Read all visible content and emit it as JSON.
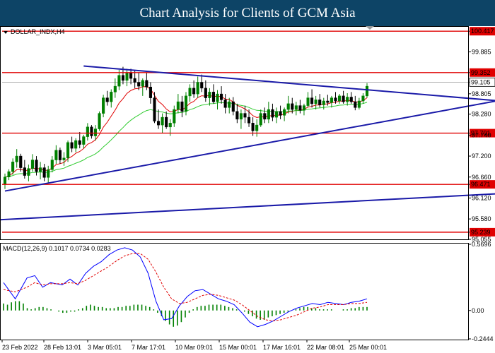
{
  "banner": {
    "title": "Chart Analysis for Clients of GCM Asia"
  },
  "colors": {
    "banner": "#0d4466",
    "bull": "#008000",
    "bear": "#000000",
    "resistance": "#e00000",
    "trendline": "#1a1aa8",
    "ema_fast": "#e00000",
    "ema_slow": "#33cc33",
    "macd_line": "#0000ff",
    "signal_line": "#e00000",
    "histogram": "#008000"
  },
  "chart_data": [
    {
      "type": "candlestick",
      "symbol_label": "DOLLAR_INDX,H4",
      "ylim": [
        95.055,
        100.53
      ],
      "y_ticks": [
        100.417,
        99.885,
        99.352,
        99.105,
        98.805,
        98.28,
        97.791,
        97.74,
        97.2,
        96.66,
        96.471,
        96.12,
        95.58,
        95.239,
        95.055
      ],
      "x_ticks": [
        "23 Feb 2022",
        "28 Feb 13:01",
        "3 Mar 05:01",
        "7 Mar 17:01",
        "10 Mar 09:01",
        "15 Mar 00:01",
        "17 Mar 16:01",
        "22 Mar 08:01",
        "25 Mar 00:01"
      ],
      "horizontal_levels": [
        100.417,
        99.352,
        97.791,
        96.471,
        95.239
      ],
      "highlight_labels": [
        100.417,
        99.352,
        97.791,
        96.471,
        95.239
      ],
      "price_label": 99.105,
      "trendlines": [
        {
          "from": [
            20,
            99.52
          ],
          "to": [
            127,
            98.61
          ]
        },
        {
          "from": [
            0,
            96.3
          ],
          "to": [
            127,
            98.66
          ]
        },
        {
          "from": [
            -3,
            95.55
          ],
          "to": [
            161,
            96.42
          ]
        }
      ],
      "candles": [
        [
          96.48,
          96.75,
          96.35,
          96.66
        ],
        [
          96.66,
          96.86,
          96.58,
          96.8
        ],
        [
          96.8,
          97.14,
          96.72,
          97.05
        ],
        [
          97.05,
          97.38,
          96.9,
          97.2
        ],
        [
          97.2,
          97.26,
          96.8,
          96.9
        ],
        [
          96.9,
          97.1,
          96.62,
          96.7
        ],
        [
          96.7,
          96.98,
          96.55,
          96.88
        ],
        [
          96.88,
          97.25,
          96.8,
          97.1
        ],
        [
          97.1,
          97.2,
          96.7,
          96.8
        ],
        [
          96.8,
          97.05,
          96.6,
          96.9
        ],
        [
          96.9,
          97.0,
          96.55,
          96.65
        ],
        [
          96.65,
          96.95,
          96.52,
          96.85
        ],
        [
          96.85,
          97.2,
          96.78,
          97.1
        ],
        [
          97.1,
          97.48,
          97.0,
          97.35
        ],
        [
          97.35,
          97.42,
          97.0,
          97.1
        ],
        [
          97.1,
          97.3,
          96.95,
          97.15
        ],
        [
          97.15,
          97.6,
          97.05,
          97.55
        ],
        [
          97.55,
          97.7,
          97.3,
          97.4
        ],
        [
          97.4,
          97.66,
          97.3,
          97.6
        ],
        [
          97.6,
          97.82,
          97.4,
          97.5
        ],
        [
          97.5,
          97.75,
          97.4,
          97.7
        ],
        [
          97.7,
          98.05,
          97.6,
          97.95
        ],
        [
          97.95,
          98.0,
          97.65,
          97.72
        ],
        [
          97.72,
          98.0,
          97.6,
          97.9
        ],
        [
          97.9,
          98.35,
          97.85,
          98.3
        ],
        [
          98.3,
          98.78,
          98.2,
          98.7
        ],
        [
          98.7,
          98.88,
          98.5,
          98.6
        ],
        [
          98.6,
          98.92,
          98.45,
          98.85
        ],
        [
          98.85,
          99.2,
          98.7,
          99.0
        ],
        [
          99.0,
          99.42,
          98.9,
          99.28
        ],
        [
          99.28,
          99.5,
          99.05,
          99.15
        ],
        [
          99.15,
          99.45,
          99.0,
          99.35
        ],
        [
          99.35,
          99.45,
          99.05,
          99.2
        ],
        [
          99.2,
          99.4,
          98.95,
          99.1
        ],
        [
          99.1,
          99.35,
          98.9,
          99.0
        ],
        [
          99.0,
          99.2,
          98.75,
          99.15
        ],
        [
          99.15,
          99.35,
          98.9,
          98.98
        ],
        [
          98.98,
          99.1,
          98.55,
          98.7
        ],
        [
          98.7,
          98.85,
          98.05,
          98.1
        ],
        [
          98.1,
          98.4,
          97.9,
          98.0
        ],
        [
          98.0,
          98.3,
          97.8,
          98.2
        ],
        [
          98.2,
          98.35,
          97.9,
          97.95
        ],
        [
          97.95,
          98.15,
          97.72,
          98.05
        ],
        [
          98.05,
          98.5,
          97.95,
          98.4
        ],
        [
          98.4,
          98.8,
          98.3,
          98.6
        ],
        [
          98.6,
          98.75,
          98.2,
          98.35
        ],
        [
          98.35,
          98.85,
          98.25,
          98.75
        ],
        [
          98.75,
          99.05,
          98.6,
          98.95
        ],
        [
          98.95,
          99.15,
          98.7,
          98.8
        ],
        [
          98.8,
          99.25,
          98.7,
          99.1
        ],
        [
          99.1,
          99.3,
          98.85,
          98.95
        ],
        [
          98.95,
          99.15,
          98.6,
          98.7
        ],
        [
          98.7,
          98.95,
          98.5,
          98.85
        ],
        [
          98.85,
          99.05,
          98.55,
          98.6
        ],
        [
          98.6,
          98.9,
          98.4,
          98.8
        ],
        [
          98.8,
          99.0,
          98.55,
          98.65
        ],
        [
          98.65,
          98.8,
          98.3,
          98.45
        ],
        [
          98.45,
          98.7,
          98.3,
          98.6
        ],
        [
          98.6,
          98.72,
          98.25,
          98.35
        ],
        [
          98.35,
          98.55,
          98.05,
          98.15
        ],
        [
          98.15,
          98.4,
          97.9,
          98.3
        ],
        [
          98.3,
          98.5,
          98.05,
          98.2
        ],
        [
          98.2,
          98.4,
          97.95,
          98.05
        ],
        [
          98.05,
          98.2,
          97.72,
          97.85
        ],
        [
          97.85,
          98.15,
          97.7,
          98.0
        ],
        [
          98.0,
          98.4,
          97.95,
          98.3
        ],
        [
          98.3,
          98.45,
          98.05,
          98.15
        ],
        [
          98.15,
          98.6,
          98.05,
          98.4
        ],
        [
          98.4,
          98.55,
          98.1,
          98.2
        ],
        [
          98.2,
          98.45,
          98.05,
          98.35
        ],
        [
          98.35,
          98.5,
          98.15,
          98.25
        ],
        [
          98.25,
          98.45,
          98.1,
          98.4
        ],
        [
          98.4,
          98.75,
          98.3,
          98.55
        ],
        [
          98.55,
          98.7,
          98.3,
          98.4
        ],
        [
          98.4,
          98.6,
          98.25,
          98.5
        ],
        [
          98.5,
          98.65,
          98.3,
          98.38
        ],
        [
          98.38,
          98.55,
          98.25,
          98.5
        ],
        [
          98.5,
          98.85,
          98.45,
          98.7
        ],
        [
          98.7,
          98.92,
          98.45,
          98.55
        ],
        [
          98.55,
          98.75,
          98.4,
          98.65
        ],
        [
          98.65,
          98.8,
          98.45,
          98.52
        ],
        [
          98.52,
          98.7,
          98.4,
          98.62
        ],
        [
          98.62,
          98.78,
          98.5,
          98.58
        ],
        [
          98.58,
          98.75,
          98.45,
          98.7
        ],
        [
          98.7,
          98.85,
          98.55,
          98.62
        ],
        [
          98.62,
          98.8,
          98.55,
          98.75
        ],
        [
          98.75,
          98.88,
          98.55,
          98.6
        ],
        [
          98.6,
          98.82,
          98.5,
          98.72
        ],
        [
          98.72,
          98.85,
          98.55,
          98.6
        ],
        [
          98.6,
          98.75,
          98.38,
          98.45
        ],
        [
          98.45,
          98.7,
          98.4,
          98.62
        ],
        [
          98.62,
          98.82,
          98.55,
          98.75
        ],
        [
          98.75,
          99.08,
          98.7,
          99.0
        ]
      ]
    },
    {
      "type": "macd",
      "label": "MACD(12,26,9) 0.1017 0.0734 0.0283",
      "ylim": [
        -0.2444,
        0.5696
      ],
      "y_ticks": [
        0.5696,
        0.0,
        -0.2444
      ],
      "macd_points": [
        [
          0,
          0.24
        ],
        [
          3,
          0.1
        ],
        [
          6,
          0.28
        ],
        [
          8,
          0.3
        ],
        [
          10,
          0.2
        ],
        [
          12,
          0.24
        ],
        [
          15,
          0.22
        ],
        [
          17,
          0.27
        ],
        [
          19,
          0.22
        ],
        [
          21,
          0.32
        ],
        [
          23,
          0.38
        ],
        [
          25,
          0.42
        ],
        [
          27,
          0.48
        ],
        [
          29,
          0.52
        ],
        [
          31,
          0.54
        ],
        [
          33,
          0.52
        ],
        [
          35,
          0.46
        ],
        [
          37,
          0.32
        ],
        [
          39,
          0.08
        ],
        [
          41,
          -0.08
        ],
        [
          43,
          -0.07
        ],
        [
          45,
          0.04
        ],
        [
          47,
          0.12
        ],
        [
          49,
          0.17
        ],
        [
          51,
          0.18
        ],
        [
          53,
          0.14
        ],
        [
          55,
          0.1
        ],
        [
          57,
          0.08
        ],
        [
          59,
          0.05
        ],
        [
          61,
          -0.02
        ],
        [
          63,
          -0.1
        ],
        [
          65,
          -0.14
        ],
        [
          67,
          -0.12
        ],
        [
          69,
          -0.09
        ],
        [
          71,
          -0.05
        ],
        [
          73,
          -0.01
        ],
        [
          75,
          0.02
        ],
        [
          77,
          0.04
        ],
        [
          79,
          0.06
        ],
        [
          81,
          0.05
        ],
        [
          83,
          0.07
        ],
        [
          85,
          0.06
        ],
        [
          87,
          0.05
        ],
        [
          89,
          0.07
        ],
        [
          91,
          0.08
        ],
        [
          93,
          0.1
        ]
      ],
      "signal_points": [
        [
          0,
          0.18
        ],
        [
          3,
          0.16
        ],
        [
          6,
          0.2
        ],
        [
          8,
          0.24
        ],
        [
          10,
          0.22
        ],
        [
          12,
          0.23
        ],
        [
          15,
          0.23
        ],
        [
          17,
          0.24
        ],
        [
          19,
          0.23
        ],
        [
          21,
          0.26
        ],
        [
          23,
          0.3
        ],
        [
          25,
          0.34
        ],
        [
          27,
          0.38
        ],
        [
          29,
          0.43
        ],
        [
          31,
          0.47
        ],
        [
          33,
          0.49
        ],
        [
          35,
          0.49
        ],
        [
          37,
          0.44
        ],
        [
          39,
          0.33
        ],
        [
          41,
          0.2
        ],
        [
          43,
          0.1
        ],
        [
          45,
          0.06
        ],
        [
          47,
          0.07
        ],
        [
          49,
          0.1
        ],
        [
          51,
          0.13
        ],
        [
          53,
          0.14
        ],
        [
          55,
          0.13
        ],
        [
          57,
          0.11
        ],
        [
          59,
          0.09
        ],
        [
          61,
          0.05
        ],
        [
          63,
          0.0
        ],
        [
          65,
          -0.05
        ],
        [
          67,
          -0.08
        ],
        [
          69,
          -0.09
        ],
        [
          71,
          -0.08
        ],
        [
          73,
          -0.06
        ],
        [
          75,
          -0.04
        ],
        [
          77,
          -0.01
        ],
        [
          79,
          0.02
        ],
        [
          81,
          0.03
        ],
        [
          83,
          0.05
        ],
        [
          85,
          0.05
        ],
        [
          87,
          0.05
        ],
        [
          89,
          0.06
        ],
        [
          91,
          0.06
        ],
        [
          93,
          0.07
        ]
      ],
      "histogram": [
        0.06,
        0.05,
        0.07,
        0.08,
        0.08,
        0.06,
        0.02,
        0.01,
        0.02,
        0.03,
        0.03,
        0.02,
        0.01,
        0.0,
        -0.01,
        -0.02,
        -0.02,
        -0.01,
        -0.01,
        0.01,
        0.02,
        0.04,
        0.05,
        0.04,
        0.03,
        0.03,
        0.02,
        0.02,
        0.02,
        0.03,
        0.03,
        0.04,
        0.04,
        0.05,
        0.05,
        0.05,
        0.04,
        0.03,
        0.01,
        -0.02,
        -0.05,
        -0.09,
        -0.12,
        -0.14,
        -0.13,
        -0.1,
        -0.06,
        -0.02,
        0.01,
        0.03,
        0.04,
        0.04,
        0.05,
        0.05,
        0.05,
        0.05,
        0.04,
        0.03,
        0.02,
        0.01,
        0.0,
        -0.01,
        -0.03,
        -0.05,
        -0.07,
        -0.08,
        -0.08,
        -0.06,
        -0.05,
        -0.04,
        -0.03,
        -0.02,
        -0.01,
        0.0,
        0.01,
        0.02,
        0.03,
        0.03,
        0.02,
        0.02,
        0.01,
        0.01,
        0.01,
        0.01,
        0.0,
        0.0,
        0.01,
        0.01,
        0.02,
        0.02,
        0.03,
        0.03,
        0.03
      ]
    }
  ]
}
